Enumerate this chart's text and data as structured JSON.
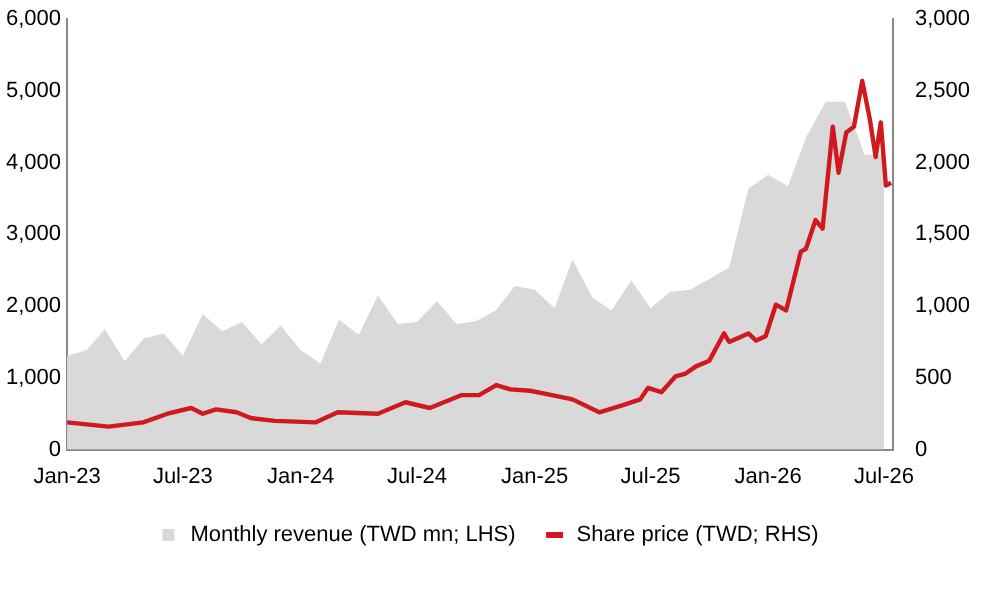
{
  "chart_data": {
    "type": "area",
    "xlim": [
      "2023-01-01",
      "2026-07-15"
    ],
    "xticks": [
      {
        "value": "2023-01",
        "label": "Jan-23"
      },
      {
        "value": "2023-07",
        "label": "Jul-23"
      },
      {
        "value": "2024-01",
        "label": "Jan-24"
      },
      {
        "value": "2024-07",
        "label": "Jul-24"
      },
      {
        "value": "2025-01",
        "label": "Jan-25"
      },
      {
        "value": "2025-07",
        "label": "Jul-25"
      },
      {
        "value": "2026-01",
        "label": "Jan-26"
      },
      {
        "value": "2026-07",
        "label": "Jul-26"
      }
    ],
    "ylim": [
      0,
      6000
    ],
    "yticks": [
      0,
      {
        "value": 1000,
        "label": "1,000"
      },
      {
        "value": 2000,
        "label": "2,000"
      },
      {
        "value": 3000,
        "label": "3,000"
      },
      {
        "value": 4000,
        "label": "4,000"
      },
      {
        "value": 5000,
        "label": "5,000"
      },
      {
        "value": 6000,
        "label": "6,000"
      }
    ],
    "y2lim": [
      0,
      3000
    ],
    "y2ticks": [
      0,
      500,
      {
        "value": 1000,
        "label": "1,000"
      },
      {
        "value": 1500,
        "label": "1,500"
      },
      {
        "value": 2000,
        "label": "2,000"
      },
      {
        "value": 2500,
        "label": "2,500"
      },
      {
        "value": 3000,
        "label": "3,000"
      }
    ],
    "grid": false,
    "legend": "bottom",
    "series": [
      {
        "name": "Monthly revenue (TWD mn; LHS)",
        "color": "#d9d9d9",
        "x": [
          "2023-01",
          "2023-02",
          "2023-03",
          "2023-04",
          "2023-05",
          "2023-06",
          "2023-07",
          "2023-08",
          "2023-09",
          "2023-10",
          "2023-11",
          "2023-12",
          "2024-01",
          "2024-02",
          "2024-03",
          "2024-04",
          "2024-05",
          "2024-06",
          "2024-07",
          "2024-08",
          "2024-09",
          "2024-10",
          "2024-11",
          "2024-12",
          "2025-01",
          "2025-02",
          "2025-03",
          "2025-04",
          "2025-05",
          "2025-06",
          "2025-07",
          "2025-08",
          "2025-09",
          "2025-10",
          "2025-11",
          "2025-12",
          "2026-01",
          "2026-02",
          "2026-03",
          "2026-04",
          "2026-05",
          "2026-06",
          "2026-07"
        ],
        "values": [
          1310,
          1390,
          1680,
          1230,
          1550,
          1620,
          1310,
          1890,
          1650,
          1780,
          1470,
          1730,
          1390,
          1200,
          1810,
          1600,
          2150,
          1750,
          1780,
          2070,
          1750,
          1790,
          1940,
          2280,
          2230,
          1970,
          2650,
          2120,
          1940,
          2360,
          1970,
          2200,
          2230,
          2380,
          2540,
          3640,
          3830,
          3670,
          4350,
          4850,
          4850,
          4110,
          4110
        ]
      },
      {
        "name": "Share price (TWD; RHS)",
        "type": "line",
        "axis": "y2",
        "color": "#d0191f",
        "x": [
          "2023-01-01",
          "2023-03-07",
          "2023-04-30",
          "2023-06-07",
          "2023-07-14",
          "2023-08-01",
          "2023-08-22",
          "2023-09-23",
          "2023-10-15",
          "2023-11-22",
          "2024-01-25",
          "2024-02-28",
          "2024-05-01",
          "2024-06-13",
          "2024-07-21",
          "2024-09-09",
          "2024-10-06",
          "2024-11-02",
          "2024-11-24",
          "2024-12-25",
          "2025-01-28",
          "2025-03-01",
          "2025-04-12",
          "2025-05-19",
          "2025-06-15",
          "2025-06-27",
          "2025-07-18",
          "2025-08-09",
          "2025-08-25",
          "2025-09-10",
          "2025-10-01",
          "2025-10-24",
          "2025-11-01",
          "2025-12-01",
          "2025-12-13",
          "2025-12-28",
          "2026-01-13",
          "2026-01-29",
          "2026-02-21",
          "2026-03-01",
          "2026-03-16",
          "2026-03-27",
          "2026-04-12",
          "2026-04-21",
          "2026-05-03",
          "2026-05-15",
          "2026-05-28",
          "2026-06-09",
          "2026-06-18",
          "2026-06-26",
          "2026-07-04",
          "2026-07-12"
        ],
        "values": [
          190,
          160,
          190,
          250,
          290,
          250,
          280,
          260,
          220,
          200,
          190,
          260,
          250,
          330,
          290,
          380,
          380,
          450,
          420,
          410,
          380,
          350,
          260,
          310,
          350,
          430,
          400,
          510,
          530,
          580,
          620,
          810,
          750,
          810,
          760,
          790,
          1010,
          970,
          1380,
          1400,
          1600,
          1540,
          2250,
          1930,
          2210,
          2250,
          2570,
          2300,
          2040,
          2280,
          1840,
          1860
        ]
      }
    ]
  }
}
